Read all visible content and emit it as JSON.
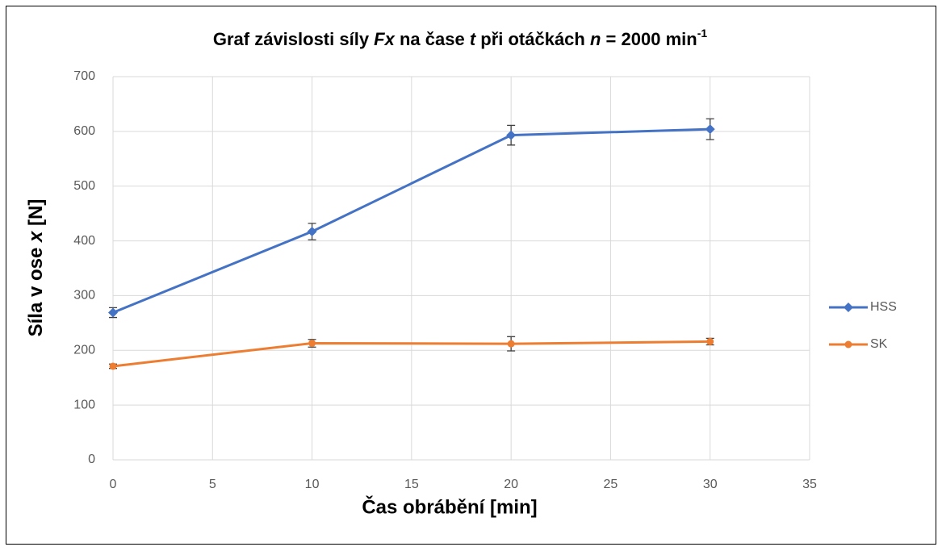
{
  "chart_data": {
    "type": "line",
    "title": [
      "Graf závislosti síly ",
      "Fx",
      " na čase ",
      "t",
      " při otáčkách ",
      "n",
      " = 2000 min",
      "-1"
    ],
    "x_label": "Čas obrábění [min]",
    "y_label": [
      "Síla v ose ",
      "x",
      " [N]"
    ],
    "x": [
      0,
      10,
      20,
      30
    ],
    "series": [
      {
        "name": "HSS",
        "color": "#4472c4",
        "marker": "diamond",
        "values": [
          269,
          417,
          593,
          604
        ],
        "errors": [
          9,
          15,
          18,
          19
        ]
      },
      {
        "name": "SK",
        "color": "#ed7d31",
        "marker": "circle",
        "values": [
          171,
          213,
          212,
          216
        ],
        "errors": [
          4,
          7,
          13,
          6
        ]
      }
    ],
    "xlim": [
      0,
      35
    ],
    "xticks": [
      0,
      5,
      10,
      15,
      20,
      25,
      30,
      35
    ],
    "ylim": [
      0,
      700
    ],
    "yticks": [
      0,
      100,
      200,
      300,
      400,
      500,
      600,
      700
    ],
    "grid": true,
    "legend": "right"
  }
}
